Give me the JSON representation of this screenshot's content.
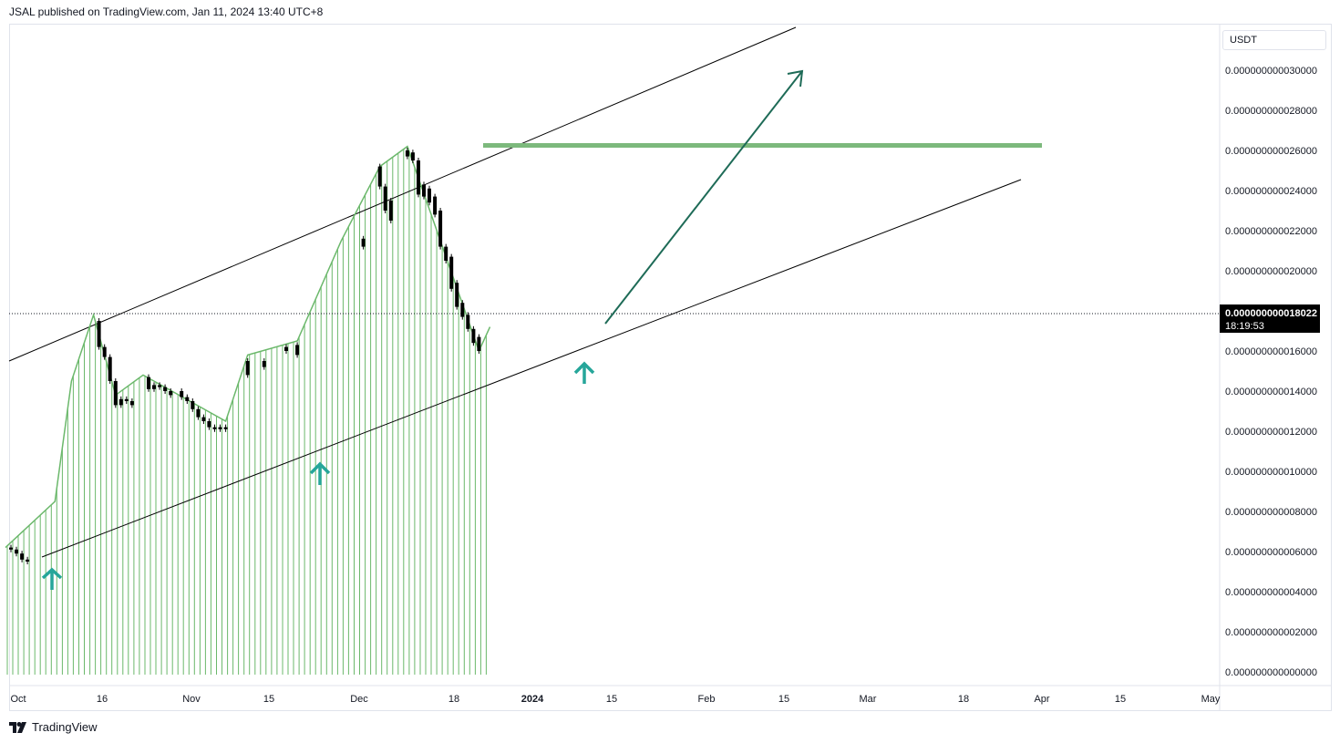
{
  "header": {
    "published": "JSAL published on TradingView.com, Jan 11, 2024 13:40 UTC+8"
  },
  "footer": {
    "brand": "TradingView"
  },
  "price_axis": {
    "currency": "USDT",
    "current_price": "0.000000000018022",
    "countdown": "18:19:53"
  },
  "colors": {
    "candle": "#000000",
    "volume": "#6bb86b",
    "price_line": "#6bb86b",
    "resistance": "#7cb97c",
    "channel": "#000000",
    "arrow": "#1e6b57",
    "markers": "#26a69a",
    "current_price_bg": "#000000"
  },
  "chart_data": {
    "type": "candlestick",
    "ylim": [
      0,
      3e-11
    ],
    "y_ticks": [
      "0.000000000030000",
      "0.000000000028000",
      "0.000000000026000",
      "0.000000000024000",
      "0.000000000022000",
      "0.000000000020000",
      "0.000000000016000",
      "0.000000000014000",
      "0.000000000012000",
      "0.000000000010000",
      "0.000000000008000",
      "0.000000000006000",
      "0.000000000004000",
      "0.000000000002000",
      "0.000000000000000"
    ],
    "x_ticks": [
      "Oct",
      "16",
      "Nov",
      "15",
      "Dec",
      "18",
      "2024",
      "15",
      "Feb",
      "15",
      "Mar",
      "18",
      "Apr",
      "15",
      "May"
    ],
    "current_price": 1.8022e-11,
    "resistance_level": 2.63e-11,
    "support_markers": [
      "2023-10-05",
      "2023-11-25",
      "2024-01-09"
    ],
    "series": [
      {
        "values": [
          {
            "date": "2023-10-01",
            "open": 6.2e-12,
            "close": 6.1e-12
          },
          {
            "date": "2023-10-02",
            "open": 6.1e-12,
            "close": 5.9e-12
          },
          {
            "date": "2023-10-03",
            "open": 5.9e-12,
            "close": 5.6e-12
          },
          {
            "date": "2023-10-04",
            "open": 5.6e-12,
            "close": 5.5e-12
          },
          {
            "date": "2023-10-17",
            "open": 1.75e-11,
            "close": 1.62e-11
          },
          {
            "date": "2023-10-18",
            "open": 1.62e-11,
            "close": 1.57e-11
          },
          {
            "date": "2023-10-19",
            "open": 1.57e-11,
            "close": 1.45e-11
          },
          {
            "date": "2023-10-20",
            "open": 1.45e-11,
            "close": 1.33e-11
          },
          {
            "date": "2023-10-21",
            "open": 1.33e-11,
            "close": 1.36e-11
          },
          {
            "date": "2023-10-22",
            "open": 1.36e-11,
            "close": 1.35e-11
          },
          {
            "date": "2023-10-23",
            "open": 1.35e-11,
            "close": 1.33e-11
          },
          {
            "date": "2023-10-26",
            "open": 1.47e-11,
            "close": 1.41e-11
          },
          {
            "date": "2023-10-27",
            "open": 1.41e-11,
            "close": 1.43e-11
          },
          {
            "date": "2023-10-28",
            "open": 1.43e-11,
            "close": 1.42e-11
          },
          {
            "date": "2023-10-29",
            "open": 1.42e-11,
            "close": 1.4e-11
          },
          {
            "date": "2023-10-30",
            "open": 1.4e-11,
            "close": 1.38e-11
          },
          {
            "date": "2023-11-01",
            "open": 1.4e-11,
            "close": 1.37e-11
          },
          {
            "date": "2023-11-02",
            "open": 1.37e-11,
            "close": 1.35e-11
          },
          {
            "date": "2023-11-03",
            "open": 1.35e-11,
            "close": 1.31e-11
          },
          {
            "date": "2023-11-04",
            "open": 1.31e-11,
            "close": 1.27e-11
          },
          {
            "date": "2023-11-05",
            "open": 1.27e-11,
            "close": 1.25e-11
          },
          {
            "date": "2023-11-06",
            "open": 1.25e-11,
            "close": 1.22e-11
          },
          {
            "date": "2023-11-07",
            "open": 1.22e-11,
            "close": 1.21e-11
          },
          {
            "date": "2023-11-08",
            "open": 1.21e-11,
            "close": 1.22e-11
          },
          {
            "date": "2023-11-09",
            "open": 1.22e-11,
            "close": 1.21e-11
          },
          {
            "date": "2023-11-13",
            "open": 1.55e-11,
            "close": 1.48e-11
          },
          {
            "date": "2023-11-16",
            "open": 1.52e-11,
            "close": 1.55e-11
          },
          {
            "date": "2023-11-20",
            "open": 1.62e-11,
            "close": 1.6e-11
          },
          {
            "date": "2023-11-22",
            "open": 1.58e-11,
            "close": 1.63e-11
          },
          {
            "date": "2023-12-04",
            "open": 2.16e-11,
            "close": 2.12e-11
          },
          {
            "date": "2023-12-07",
            "open": 2.52e-11,
            "close": 2.42e-11
          },
          {
            "date": "2023-12-08",
            "open": 2.42e-11,
            "close": 2.3e-11
          },
          {
            "date": "2023-12-09",
            "open": 2.35e-11,
            "close": 2.25e-11
          },
          {
            "date": "2023-12-12",
            "open": 2.6e-11,
            "close": 2.57e-11
          },
          {
            "date": "2023-12-13",
            "open": 2.59e-11,
            "close": 2.55e-11
          },
          {
            "date": "2023-12-14",
            "open": 2.55e-11,
            "close": 2.38e-11
          },
          {
            "date": "2023-12-15",
            "open": 2.43e-11,
            "close": 2.37e-11
          },
          {
            "date": "2023-12-16",
            "open": 2.41e-11,
            "close": 2.34e-11
          },
          {
            "date": "2023-12-17",
            "open": 2.37e-11,
            "close": 2.28e-11
          },
          {
            "date": "2023-12-18",
            "open": 2.3e-11,
            "close": 2.12e-11
          },
          {
            "date": "2023-12-19",
            "open": 2.12e-11,
            "close": 2.05e-11
          },
          {
            "date": "2023-12-20",
            "open": 2.07e-11,
            "close": 1.91e-11
          },
          {
            "date": "2023-12-21",
            "open": 1.94e-11,
            "close": 1.82e-11
          },
          {
            "date": "2023-12-22",
            "open": 1.84e-11,
            "close": 1.77e-11
          },
          {
            "date": "2023-12-23",
            "open": 1.78e-11,
            "close": 1.71e-11
          },
          {
            "date": "2023-12-24",
            "open": 1.71e-11,
            "close": 1.64e-11
          },
          {
            "date": "2023-12-25",
            "open": 1.67e-11,
            "close": 1.6e-11
          }
        ]
      }
    ],
    "price_line": [
      {
        "date": "2023-09-30",
        "value": 6.2e-12
      },
      {
        "date": "2023-10-09",
        "value": 8.5e-12
      },
      {
        "date": "2023-10-12",
        "value": 1.45e-11
      },
      {
        "date": "2023-10-16",
        "value": 1.78e-11
      },
      {
        "date": "2023-10-20",
        "value": 1.38e-11
      },
      {
        "date": "2023-10-25",
        "value": 1.48e-11
      },
      {
        "date": "2023-11-09",
        "value": 1.25e-11
      },
      {
        "date": "2023-11-13",
        "value": 1.58e-11
      },
      {
        "date": "2023-11-22",
        "value": 1.65e-11
      },
      {
        "date": "2023-11-30",
        "value": 2.15e-11
      },
      {
        "date": "2023-12-07",
        "value": 2.52e-11
      },
      {
        "date": "2023-12-12",
        "value": 2.62e-11
      },
      {
        "date": "2023-12-25",
        "value": 1.6e-11
      },
      {
        "date": "2023-12-27",
        "value": 1.72e-11
      }
    ]
  }
}
